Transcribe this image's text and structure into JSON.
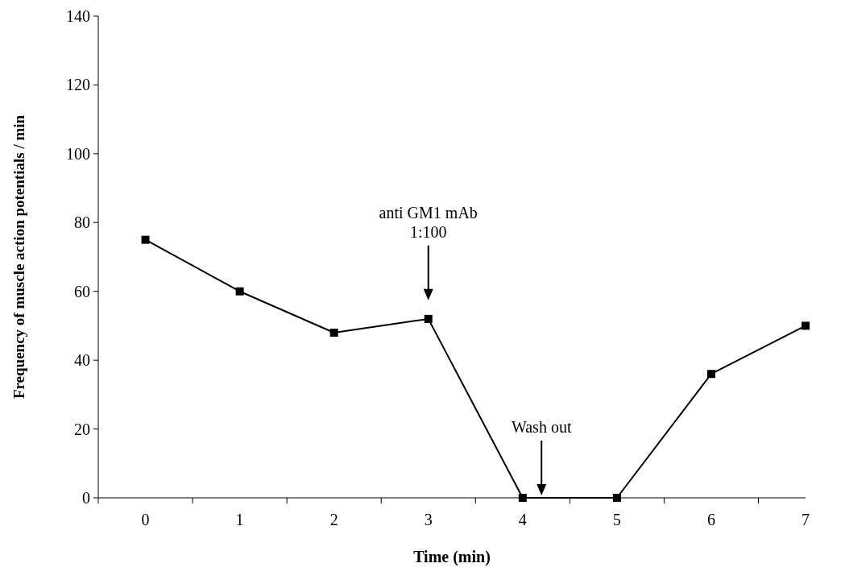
{
  "chart_data": {
    "type": "line",
    "xlabel": "Time (min)",
    "ylabel": "Frequency of muscle action potentials / min",
    "categories": [
      "0",
      "1",
      "2",
      "3",
      "4",
      "5",
      "6",
      "7"
    ],
    "series": [
      {
        "color": "#000000",
        "values": [
          75,
          60,
          48,
          52,
          0,
          0,
          36,
          50
        ]
      }
    ],
    "ylim": [
      0,
      140
    ],
    "yticks": [
      0,
      20,
      40,
      60,
      80,
      100,
      120,
      140
    ],
    "marker": "square",
    "line_style": "solid",
    "grid": false,
    "annotations": [
      "anti GM1 mAb\n1:100",
      "Wash out"
    ]
  }
}
